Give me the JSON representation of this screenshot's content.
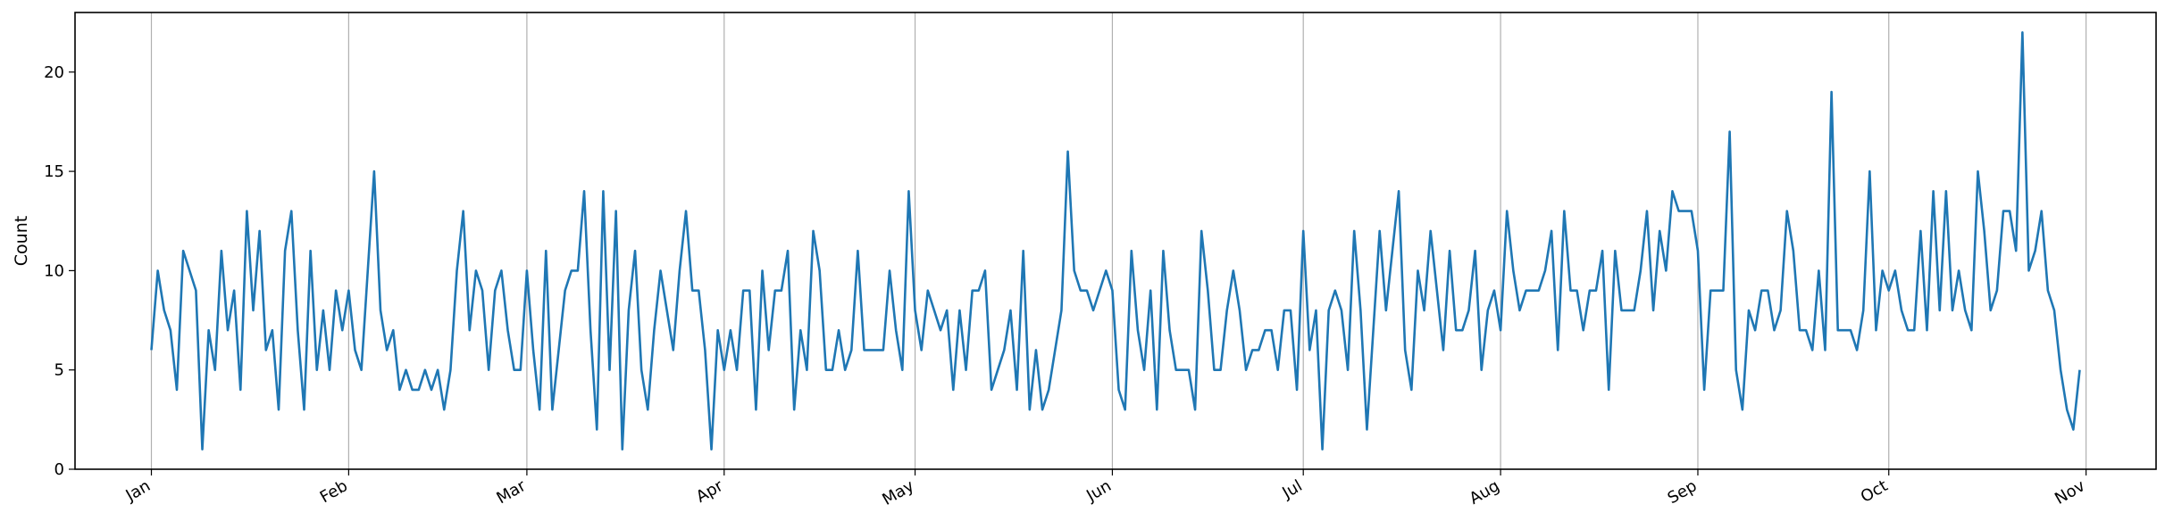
{
  "chart_data": {
    "type": "line",
    "title": "",
    "xlabel": "",
    "ylabel": "Count",
    "ylim": [
      0,
      23
    ],
    "yticks": [
      0,
      5,
      10,
      15,
      20
    ],
    "xlim": [
      "2025-12-20",
      "2026-11-12"
    ],
    "xtick_labels": [
      "Jan",
      "Feb",
      "Mar",
      "Apr",
      "May",
      "Jun",
      "Jul",
      "Aug",
      "Sep",
      "Oct",
      "Nov"
    ],
    "xtick_dates": [
      "2026-01-01",
      "2026-02-01",
      "2026-03-01",
      "2026-04-01",
      "2026-05-01",
      "2026-06-01",
      "2026-07-01",
      "2026-08-01",
      "2026-09-01",
      "2026-10-01",
      "2026-11-01"
    ],
    "grid": "vertical lines at x ticks",
    "line_color": "#1f77b4",
    "series": [
      {
        "name": "",
        "x_start": "2026-01-01",
        "x_step": "1 day",
        "values": [
          6,
          10,
          8,
          7,
          4,
          11,
          10,
          9,
          1,
          7,
          5,
          11,
          7,
          9,
          4,
          13,
          8,
          12,
          6,
          7,
          3,
          11,
          13,
          7,
          3,
          11,
          5,
          8,
          5,
          9,
          7,
          9,
          6,
          5,
          10,
          15,
          8,
          6,
          7,
          4,
          5,
          4,
          4,
          5,
          4,
          5,
          3,
          5,
          10,
          13,
          7,
          10,
          9,
          5,
          9,
          10,
          7,
          5,
          5,
          10,
          6,
          3,
          11,
          3,
          6,
          9,
          10,
          10,
          14,
          7,
          2,
          14,
          5,
          13,
          1,
          8,
          11,
          5,
          3,
          7,
          10,
          8,
          6,
          10,
          13,
          9,
          9,
          6,
          1,
          7,
          5,
          7,
          5,
          9,
          9,
          3,
          10,
          6,
          9,
          9,
          11,
          3,
          7,
          5,
          12,
          10,
          5,
          5,
          7,
          5,
          6,
          11,
          6,
          6,
          6,
          6,
          10,
          7,
          5,
          14,
          8,
          6,
          9,
          8,
          7,
          8,
          4,
          8,
          5,
          9,
          9,
          10,
          4,
          5,
          6,
          8,
          4,
          11,
          3,
          6,
          3,
          4,
          6,
          8,
          16,
          10,
          9,
          9,
          8,
          9,
          10,
          9,
          4,
          3,
          11,
          7,
          5,
          9,
          3,
          11,
          7,
          5,
          5,
          5,
          3,
          12,
          9,
          5,
          5,
          8,
          10,
          8,
          5,
          6,
          6,
          7,
          7,
          5,
          8,
          8,
          4,
          12,
          6,
          8,
          1,
          8,
          9,
          8,
          5,
          12,
          8,
          2,
          7,
          12,
          8,
          11,
          14,
          6,
          4,
          10,
          8,
          12,
          9,
          6,
          11,
          7,
          7,
          8,
          11,
          5,
          8,
          9,
          7,
          13,
          10,
          8,
          9,
          9,
          9,
          10,
          12,
          6,
          13,
          9,
          9,
          7,
          9,
          9,
          11,
          4,
          11,
          8,
          8,
          8,
          10,
          13,
          8,
          12,
          10,
          14,
          13,
          13,
          13,
          11,
          4,
          9,
          9,
          9,
          17,
          5,
          3,
          8,
          7,
          9,
          9,
          7,
          8,
          13,
          11,
          7,
          7,
          6,
          10,
          6,
          19,
          7,
          7,
          7,
          6,
          8,
          15,
          7,
          10,
          9,
          10,
          8,
          7,
          7,
          12,
          7,
          14,
          8,
          14,
          8,
          10,
          8,
          7,
          15,
          12,
          8,
          9,
          13,
          13,
          11,
          22,
          10,
          11,
          13,
          9,
          8,
          5,
          3,
          2,
          5
        ]
      }
    ]
  }
}
